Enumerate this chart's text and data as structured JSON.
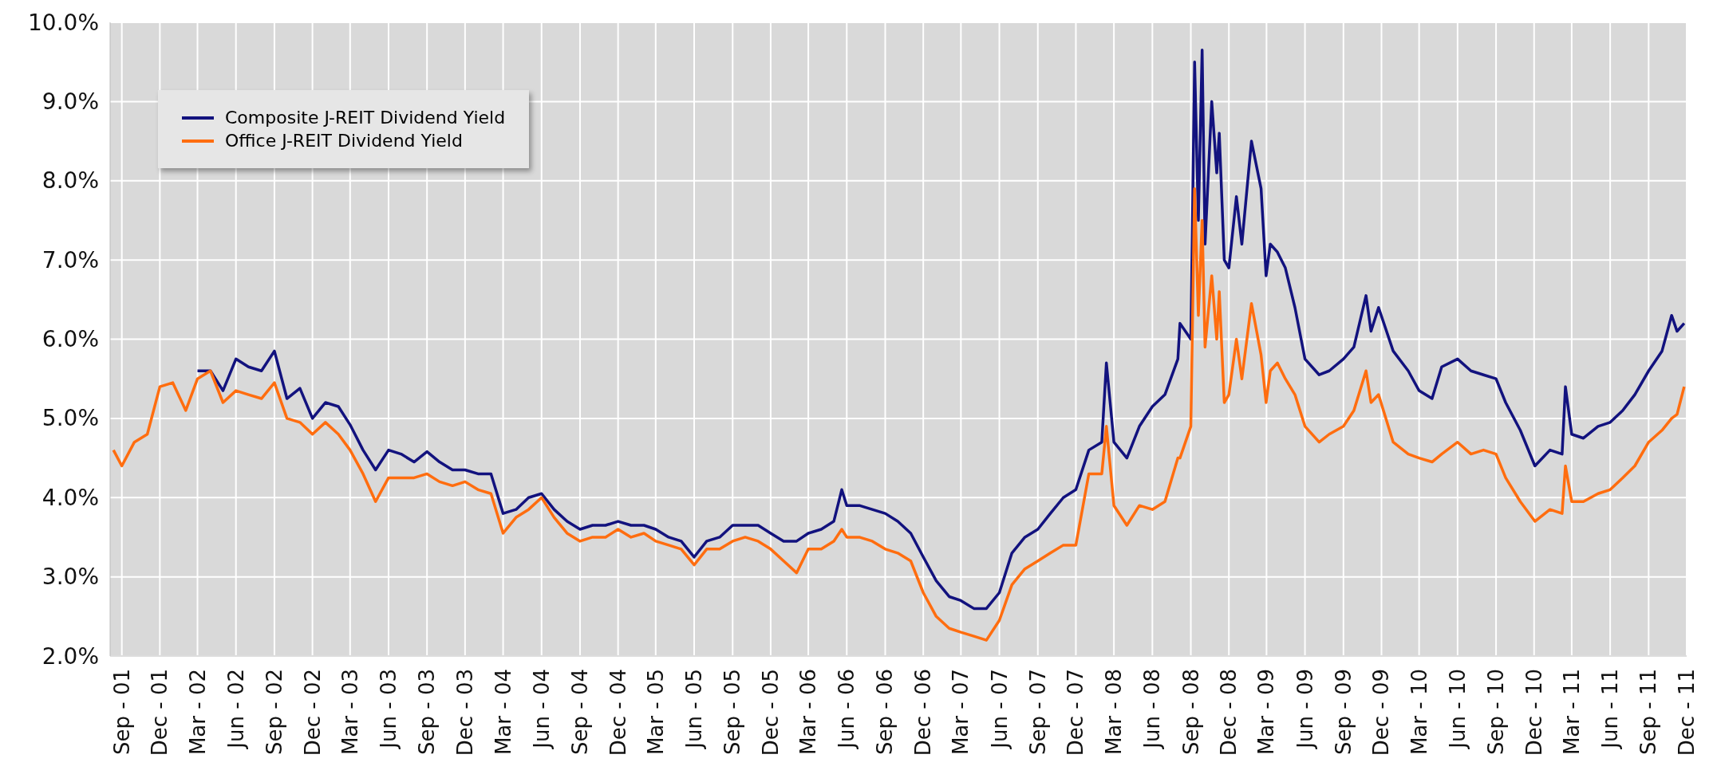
{
  "chart_data": {
    "type": "line",
    "legend": "top left",
    "grid": true,
    "marker": "none",
    "line_style": "solid",
    "xlim": [
      "2001-08-04",
      "2011-12-01"
    ],
    "xticks": [
      {
        "value": "2001-09",
        "label": "Sep - 01"
      },
      {
        "value": "2001-12",
        "label": "Dec - 01"
      },
      {
        "value": "2002-03",
        "label": "Mar - 02"
      },
      {
        "value": "2002-06",
        "label": "Jun - 02"
      },
      {
        "value": "2002-09",
        "label": "Sep - 02"
      },
      {
        "value": "2002-12",
        "label": "Dec - 02"
      },
      {
        "value": "2003-03",
        "label": "Mar - 03"
      },
      {
        "value": "2003-06",
        "label": "Jun - 03"
      },
      {
        "value": "2003-09",
        "label": "Sep - 03"
      },
      {
        "value": "2003-12",
        "label": "Dec - 03"
      },
      {
        "value": "2004-03",
        "label": "Mar - 04"
      },
      {
        "value": "2004-06",
        "label": "Jun - 04"
      },
      {
        "value": "2004-09",
        "label": "Sep - 04"
      },
      {
        "value": "2004-12",
        "label": "Dec - 04"
      },
      {
        "value": "2005-03",
        "label": "Mar - 05"
      },
      {
        "value": "2005-06",
        "label": "Jun - 05"
      },
      {
        "value": "2005-09",
        "label": "Sep - 05"
      },
      {
        "value": "2005-12",
        "label": "Dec - 05"
      },
      {
        "value": "2006-03",
        "label": "Mar - 06"
      },
      {
        "value": "2006-06",
        "label": "Jun - 06"
      },
      {
        "value": "2006-09",
        "label": "Sep - 06"
      },
      {
        "value": "2006-12",
        "label": "Dec - 06"
      },
      {
        "value": "2007-03",
        "label": "Mar - 07"
      },
      {
        "value": "2007-06",
        "label": "Jun - 07"
      },
      {
        "value": "2007-09",
        "label": "Sep - 07"
      },
      {
        "value": "2007-12",
        "label": "Dec - 07"
      },
      {
        "value": "2008-03",
        "label": "Mar - 08"
      },
      {
        "value": "2008-06",
        "label": "Jun - 08"
      },
      {
        "value": "2008-09",
        "label": "Sep - 08"
      },
      {
        "value": "2008-12",
        "label": "Dec - 08"
      },
      {
        "value": "2009-03",
        "label": "Mar - 09"
      },
      {
        "value": "2009-06",
        "label": "Jun - 09"
      },
      {
        "value": "2009-09",
        "label": "Sep - 09"
      },
      {
        "value": "2009-12",
        "label": "Dec - 09"
      },
      {
        "value": "2010-03",
        "label": "Mar - 10"
      },
      {
        "value": "2010-06",
        "label": "Jun - 10"
      },
      {
        "value": "2010-09",
        "label": "Sep - 10"
      },
      {
        "value": "2010-12",
        "label": "Dec - 10"
      },
      {
        "value": "2011-03",
        "label": "Mar - 11"
      },
      {
        "value": "2011-06",
        "label": "Jun - 11"
      },
      {
        "value": "2011-09",
        "label": "Sep - 11"
      },
      {
        "value": "2011-12",
        "label": "Dec - 11"
      }
    ],
    "ylim": [
      2,
      10
    ],
    "yticks": [
      {
        "value": 2,
        "label": "2.0%"
      },
      {
        "value": 3,
        "label": "3.0%"
      },
      {
        "value": 4,
        "label": "4.0%"
      },
      {
        "value": 5,
        "label": "5.0%"
      },
      {
        "value": 6,
        "label": "6.0%"
      },
      {
        "value": 7,
        "label": "7.0%"
      },
      {
        "value": 8,
        "label": "8.0%"
      },
      {
        "value": 9,
        "label": "9.0%"
      },
      {
        "value": 10,
        "label": "10.0%"
      }
    ],
    "x": [
      "2001-08-12",
      "2001-09",
      "2001-10",
      "2001-11",
      "2001-12",
      "2002-01",
      "2002-02",
      "2002-03",
      "2002-04",
      "2002-05",
      "2002-06",
      "2002-07",
      "2002-08",
      "2002-09",
      "2002-10",
      "2002-11",
      "2002-12",
      "2003-01",
      "2003-02",
      "2003-03",
      "2003-04",
      "2003-05",
      "2003-06",
      "2003-07",
      "2003-08",
      "2003-09",
      "2003-10",
      "2003-11",
      "2003-12",
      "2004-01",
      "2004-02",
      "2004-03",
      "2004-04",
      "2004-05",
      "2004-06",
      "2004-07",
      "2004-08",
      "2004-09",
      "2004-10",
      "2004-11",
      "2004-12",
      "2005-01",
      "2005-02",
      "2005-03",
      "2005-04",
      "2005-05",
      "2005-06",
      "2005-07",
      "2005-08",
      "2005-09",
      "2005-10",
      "2005-11",
      "2005-12",
      "2006-01",
      "2006-02",
      "2006-03",
      "2006-04",
      "2006-05",
      "2006-05-20",
      "2006-06",
      "2006-07",
      "2006-08",
      "2006-09",
      "2006-10",
      "2006-11",
      "2006-12",
      "2007-01",
      "2007-02",
      "2007-03",
      "2007-04",
      "2007-05",
      "2007-06",
      "2007-07",
      "2007-08",
      "2007-09",
      "2007-10",
      "2007-11",
      "2007-12",
      "2008-01",
      "2008-02",
      "2008-02-12",
      "2008-03",
      "2008-04",
      "2008-05",
      "2008-06",
      "2008-07",
      "2008-08",
      "2008-08-06",
      "2008-09",
      "2008-09-10",
      "2008-09-19",
      "2008-09-28",
      "2008-10-05",
      "2008-10-21",
      "2008-11-02",
      "2008-11-08",
      "2008-11-20",
      "2008-12-01",
      "2008-12-19",
      "2009-01-01",
      "2009-01-24",
      "2009-02-16",
      "2009-02-28",
      "2009-03-10",
      "2009-03-27",
      "2009-04-15",
      "2009-05-08",
      "2009-06-01",
      "2009-07-05",
      "2009-07-29",
      "2009-09-01",
      "2009-09-26",
      "2009-10-25",
      "2009-11-06",
      "2009-11-24",
      "2009-12-29",
      "2010-02-03",
      "2010-03-01",
      "2010-04-01",
      "2010-04-24",
      "2010-06-01",
      "2010-07-03",
      "2010-08-02",
      "2010-09-01",
      "2010-09-24",
      "2010-10-29",
      "2010-12-03",
      "2011-01-08",
      "2011-02-06",
      "2011-02-14",
      "2011-03-01",
      "2011-03-29",
      "2011-05-03",
      "2011-06-01",
      "2011-07-01",
      "2011-07-30",
      "2011-09-01",
      "2011-10-03",
      "2011-10-26",
      "2011-11-08",
      "2011-11-25"
    ],
    "series": [
      {
        "name": "Composite J-REIT Dividend Yield",
        "color": "#12127e",
        "values": [
          null,
          null,
          null,
          null,
          null,
          null,
          null,
          5.6,
          5.6,
          5.35,
          5.75,
          5.65,
          5.6,
          5.85,
          5.25,
          5.38,
          5.0,
          5.2,
          5.15,
          4.92,
          4.6,
          4.35,
          4.6,
          4.55,
          4.45,
          4.58,
          4.45,
          4.35,
          4.35,
          4.3,
          4.3,
          3.8,
          3.85,
          4.0,
          4.05,
          3.85,
          3.7,
          3.6,
          3.65,
          3.65,
          3.7,
          3.65,
          3.65,
          3.6,
          3.5,
          3.45,
          3.25,
          3.45,
          3.5,
          3.65,
          3.65,
          3.65,
          3.55,
          3.45,
          3.45,
          3.55,
          3.6,
          3.7,
          4.1,
          3.9,
          3.9,
          3.85,
          3.8,
          3.7,
          3.55,
          3.25,
          2.95,
          2.75,
          2.7,
          2.6,
          2.6,
          2.8,
          3.3,
          3.5,
          3.6,
          3.8,
          4.0,
          4.1,
          4.6,
          4.7,
          5.7,
          4.7,
          4.5,
          4.9,
          5.15,
          5.3,
          5.75,
          6.2,
          6.0,
          9.5,
          7.5,
          9.65,
          7.2,
          9.0,
          8.1,
          8.6,
          7.0,
          6.9,
          7.8,
          7.2,
          8.5,
          7.9,
          6.8,
          7.2,
          7.1,
          6.9,
          6.4,
          5.75,
          5.55,
          5.6,
          5.75,
          5.9,
          6.55,
          6.1,
          6.4,
          5.85,
          5.6,
          5.35,
          5.25,
          5.65,
          5.75,
          5.6,
          5.55,
          5.5,
          5.2,
          4.85,
          4.4,
          4.6,
          4.55,
          5.4,
          4.8,
          4.75,
          4.9,
          4.95,
          5.1,
          5.3,
          5.6,
          5.85,
          6.3,
          6.1,
          6.2
        ]
      },
      {
        "name": "Office J-REIT Dividend Yield",
        "color": "#ff6d0f",
        "values": [
          4.6,
          4.4,
          4.7,
          4.8,
          5.4,
          5.45,
          5.1,
          5.5,
          5.6,
          5.2,
          5.35,
          5.3,
          5.25,
          5.45,
          5.0,
          4.95,
          4.8,
          4.95,
          4.8,
          4.6,
          4.3,
          3.95,
          4.25,
          4.25,
          4.25,
          4.3,
          4.2,
          4.15,
          4.2,
          4.1,
          4.05,
          3.55,
          3.75,
          3.85,
          4.0,
          3.75,
          3.55,
          3.45,
          3.5,
          3.5,
          3.6,
          3.5,
          3.55,
          3.45,
          3.4,
          3.35,
          3.15,
          3.35,
          3.35,
          3.45,
          3.5,
          3.45,
          3.35,
          3.2,
          3.05,
          3.35,
          3.35,
          3.45,
          3.6,
          3.5,
          3.5,
          3.45,
          3.35,
          3.3,
          3.2,
          2.8,
          2.5,
          2.35,
          2.3,
          2.25,
          2.2,
          2.45,
          2.9,
          3.1,
          3.2,
          3.3,
          3.4,
          3.4,
          4.3,
          4.3,
          4.9,
          3.9,
          3.65,
          3.9,
          3.85,
          3.95,
          4.5,
          4.5,
          4.9,
          7.9,
          6.3,
          7.5,
          5.9,
          6.8,
          6.0,
          6.6,
          5.2,
          5.3,
          6.0,
          5.5,
          6.45,
          5.8,
          5.2,
          5.6,
          5.7,
          5.5,
          5.3,
          4.9,
          4.7,
          4.8,
          4.9,
          5.1,
          5.6,
          5.2,
          5.3,
          4.7,
          4.55,
          4.5,
          4.45,
          4.55,
          4.7,
          4.55,
          4.6,
          4.55,
          4.25,
          3.95,
          3.7,
          3.85,
          3.8,
          4.4,
          3.95,
          3.95,
          4.05,
          4.1,
          4.25,
          4.4,
          4.7,
          4.85,
          5.0,
          5.05,
          5.4
        ]
      }
    ]
  }
}
